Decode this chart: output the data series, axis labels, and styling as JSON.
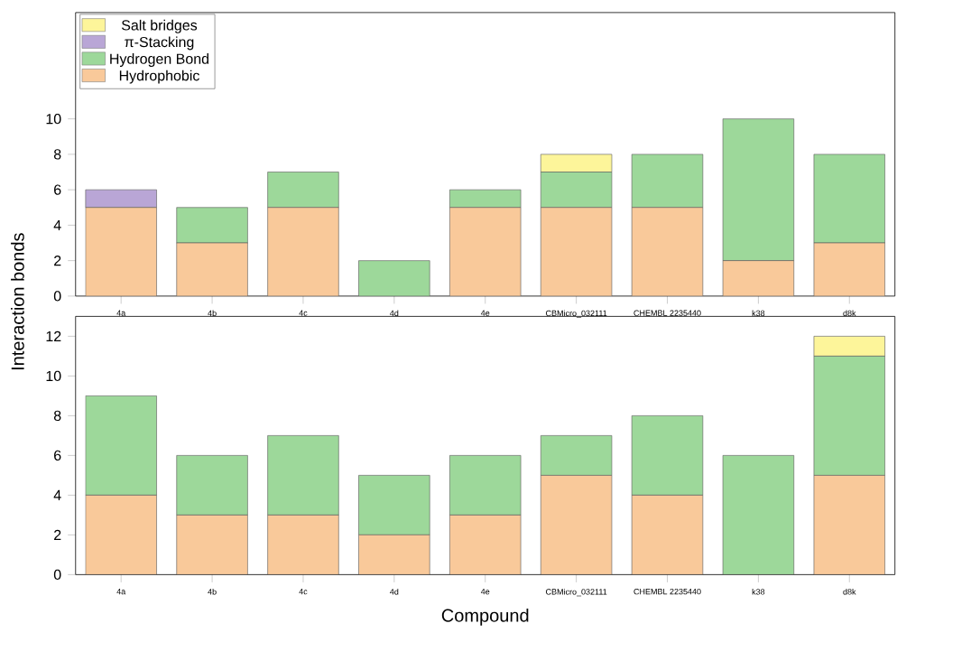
{
  "chart_data": [
    {
      "type": "bar",
      "stacked": true,
      "ylabel": "Interaction bonds",
      "categories": [
        "4a",
        "4b",
        "4c",
        "4d",
        "4e",
        "CBMicro_032111",
        "CHEMBL 2235440",
        "k38",
        "d8k"
      ],
      "ylim": [
        0,
        16
      ],
      "yticks": [
        0,
        2,
        4,
        6,
        8,
        10
      ],
      "legend": "top left",
      "series": [
        {
          "name": "Hydrophobic",
          "color": "#f9c99a",
          "values": [
            5,
            3,
            5,
            0,
            5,
            5,
            5,
            2,
            3
          ]
        },
        {
          "name": "Hydrogen Bond",
          "color": "#9dd89a",
          "values": [
            0,
            2,
            2,
            2,
            1,
            2,
            3,
            8,
            5
          ]
        },
        {
          "name": "π-Stacking",
          "color": "#b9a6d6",
          "values": [
            1,
            0,
            0,
            0,
            0,
            0,
            0,
            0,
            0
          ]
        },
        {
          "name": "Salt bridges",
          "color": "#fdf59a",
          "values": [
            0,
            0,
            0,
            0,
            0,
            1,
            0,
            0,
            0
          ]
        }
      ]
    },
    {
      "type": "bar",
      "stacked": true,
      "xlabel": "Compound",
      "categories": [
        "4a",
        "4b",
        "4c",
        "4d",
        "4e",
        "CBMicro_032111",
        "CHEMBL 2235440",
        "k38",
        "d8k"
      ],
      "ylim": [
        0,
        13
      ],
      "yticks": [
        0,
        2,
        4,
        6,
        8,
        10,
        12
      ],
      "series": [
        {
          "color": "#f9c99a",
          "values": [
            4,
            3,
            3,
            2,
            3,
            5,
            4,
            0,
            5
          ]
        },
        {
          "color": "#9dd89a",
          "values": [
            5,
            3,
            4,
            3,
            3,
            2,
            4,
            6,
            6
          ]
        },
        {
          "color": "#fdf59a",
          "values": [
            0,
            0,
            0,
            0,
            0,
            0,
            0,
            0,
            1
          ]
        }
      ]
    }
  ]
}
